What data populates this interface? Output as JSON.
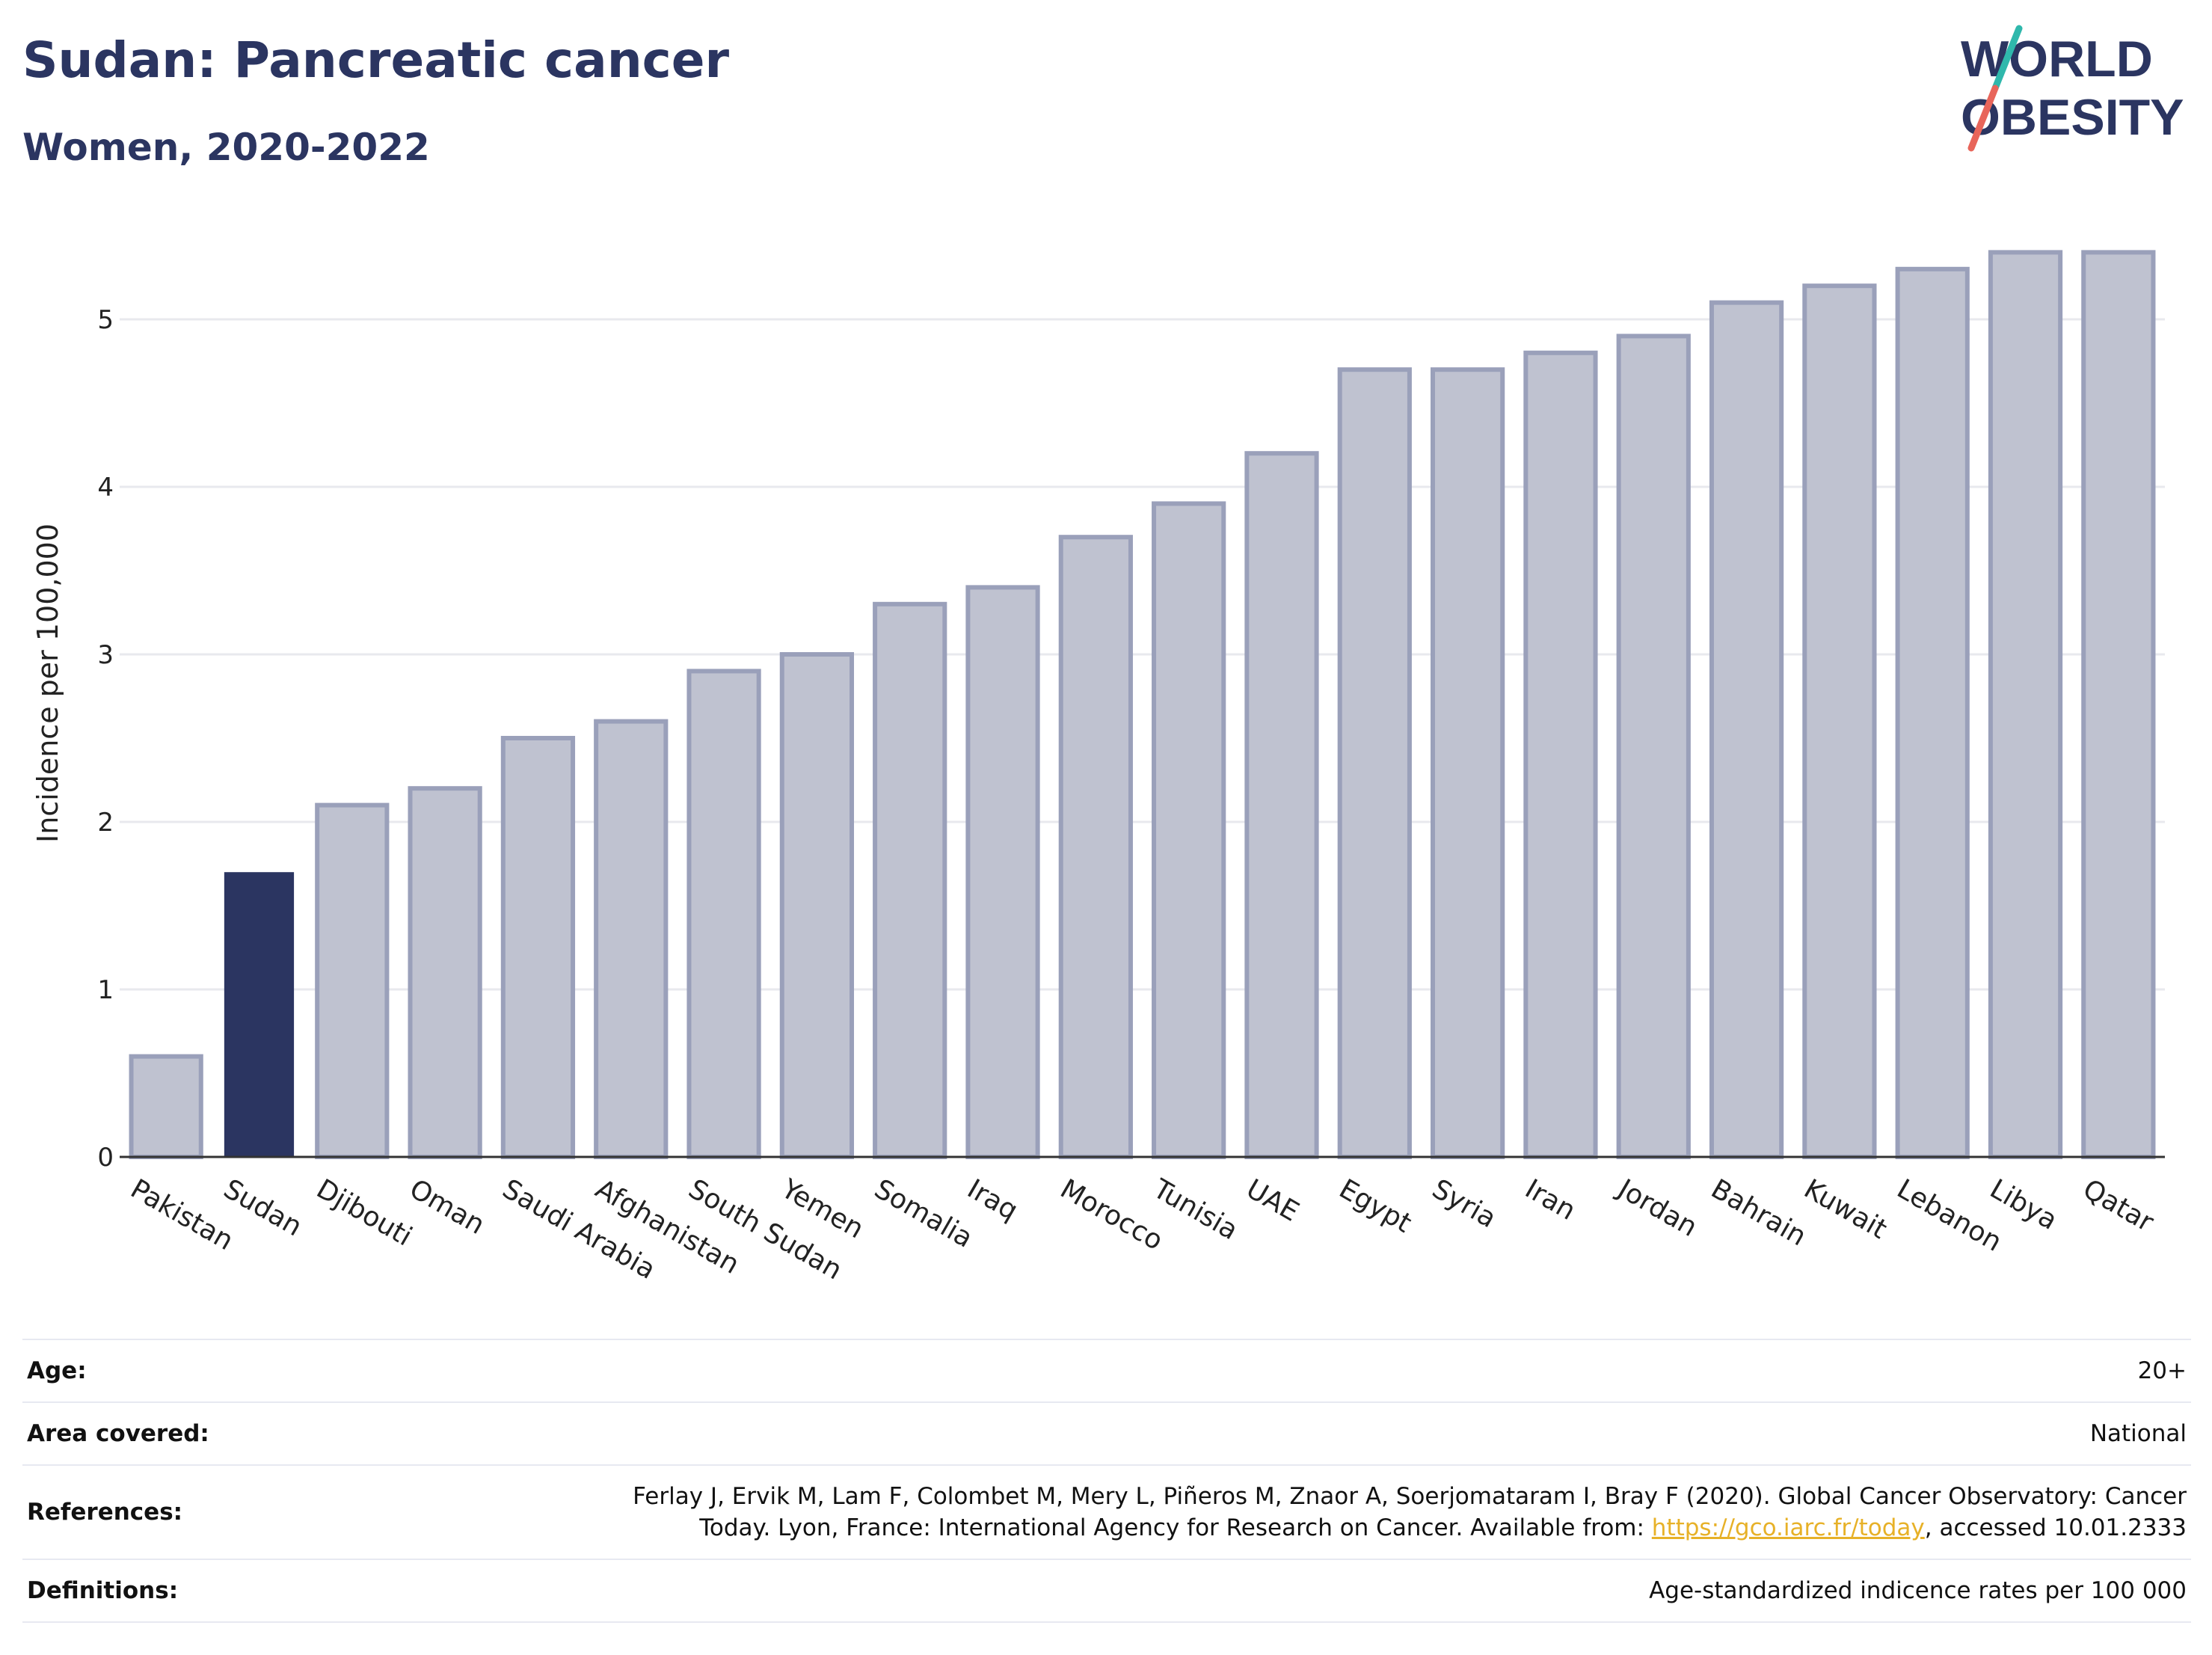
{
  "header": {
    "title": "Sudan: Pancreatic cancer",
    "subtitle": "Women, 2020-2022"
  },
  "logo": {
    "line1": "WORLD",
    "line2": "OBESITY",
    "colors": {
      "text": "#2b3561",
      "slash_top": "#2fb8ac",
      "slash_bottom": "#e8655a"
    }
  },
  "chart_data": {
    "type": "bar",
    "categories": [
      "Pakistan",
      "Sudan",
      "Djibouti",
      "Oman",
      "Saudi Arabia",
      "Afghanistan",
      "South Sudan",
      "Yemen",
      "Somalia",
      "Iraq",
      "Morocco",
      "Tunisia",
      "UAE",
      "Egypt",
      "Syria",
      "Iran",
      "Jordan",
      "Bahrain",
      "Kuwait",
      "Lebanon",
      "Libya",
      "Qatar"
    ],
    "values": [
      0.6,
      1.7,
      2.1,
      2.2,
      2.5,
      2.6,
      2.9,
      3.0,
      3.3,
      3.4,
      3.7,
      3.9,
      4.2,
      4.7,
      4.7,
      4.8,
      4.9,
      5.1,
      5.2,
      5.3,
      5.4,
      5.4
    ],
    "highlight": "Sudan",
    "ylabel": "Incidence per 100,000",
    "xlabel": "",
    "ylim": [
      0,
      5.5
    ],
    "yticks": [
      0,
      1,
      2,
      3,
      4,
      5
    ],
    "grid": true,
    "colors": {
      "bar": "#bfc2d0",
      "bar_border": "#9aa0ba",
      "highlight": "#2b3561",
      "grid": "#e8e9ee",
      "axis": "#333333"
    }
  },
  "info": {
    "age_label": "Age:",
    "age_value": "20+",
    "area_label": "Area covered:",
    "area_value": "National",
    "references_label": "References:",
    "references_line1": "Ferlay J, Ervik M, Lam F, Colombet M, Mery L, Piñeros M, Znaor A, Soerjomataram I, Bray F (2020). Global Cancer Observatory: Cancer",
    "references_line2_pre": "Today. Lyon, France: International Agency for Research on Cancer. Available from: ",
    "references_link": "https://gco.iarc.fr/today",
    "references_line2_post": ", accessed 10.01.2333",
    "definitions_label": "Definitions:",
    "definitions_value": "Age-standardized indicence rates per 100 000"
  }
}
